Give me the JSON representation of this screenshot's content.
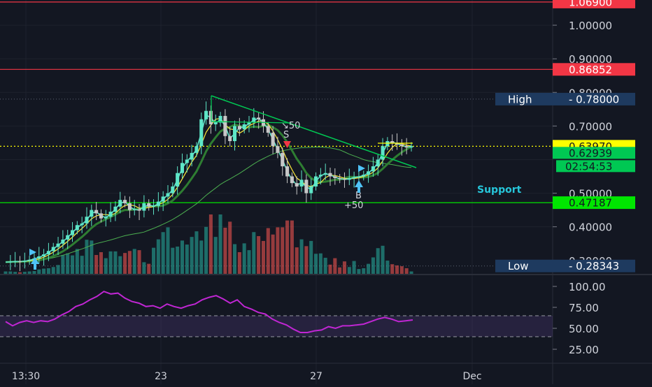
{
  "chart_data": {
    "type": "candlestick",
    "symbol_note": "",
    "price_axis": {
      "ticks": [
        "1.00000",
        "0.90000",
        "0.80000",
        "0.70000",
        "0.50000",
        "0.40000",
        "0.30000"
      ],
      "ylim": [
        0.26,
        1.075
      ]
    },
    "x_axis": {
      "ticks": [
        "13:30",
        "23",
        "27",
        "Dec"
      ]
    },
    "horizontal_levels": [
      {
        "label": "1.06900",
        "value": 1.069,
        "color": "#f23645"
      },
      {
        "label": "0.86852",
        "value": 0.86852,
        "color": "#f23645"
      },
      {
        "label": "0.47187",
        "value": 0.47187,
        "color": "#00e600"
      }
    ],
    "markers": {
      "high": {
        "title": "High",
        "value": "0.78000"
      },
      "low": {
        "title": "Low",
        "value": "0.28343"
      },
      "last_price": "0.63970",
      "ma_value": "0.62939",
      "countdown": "02:54:53",
      "support_label": "Support",
      "sell_label": "S",
      "sell_qty": "50",
      "buy_label": "B",
      "buy_qty": "+50"
    },
    "price_path": [
      0.295,
      0.296,
      0.297,
      0.296,
      0.299,
      0.302,
      0.306,
      0.312,
      0.318,
      0.328,
      0.34,
      0.35,
      0.362,
      0.375,
      0.39,
      0.405,
      0.41,
      0.43,
      0.45,
      0.44,
      0.425,
      0.43,
      0.445,
      0.46,
      0.48,
      0.47,
      0.45,
      0.452,
      0.448,
      0.47,
      0.46,
      0.462,
      0.475,
      0.49,
      0.5,
      0.52,
      0.56,
      0.59,
      0.6,
      0.62,
      0.64,
      0.72,
      0.745,
      0.705,
      0.71,
      0.73,
      0.67,
      0.655,
      0.7,
      0.69,
      0.705,
      0.71,
      0.725,
      0.72,
      0.7,
      0.68,
      0.64,
      0.62,
      0.58,
      0.55,
      0.53,
      0.52,
      0.54,
      0.5,
      0.52,
      0.55,
      0.555,
      0.56,
      0.55,
      0.545,
      0.542,
      0.54,
      0.545,
      0.548,
      0.55,
      0.555,
      0.565,
      0.58,
      0.6,
      0.64,
      0.655,
      0.65,
      0.645,
      0.64,
      0.636,
      0.64
    ],
    "volume": [
      0.6,
      0.6,
      0.5,
      0.4,
      0.5,
      0.6,
      0.7,
      1.1,
      1.3,
      1.4,
      1.7,
      2.2,
      4.7,
      5.1,
      4.6,
      6.2,
      4.5,
      8.5,
      8.3,
      4.7,
      5.4,
      3.9,
      5.6,
      5.6,
      4.4,
      5.2,
      5.7,
      6.2,
      5.9,
      2.9,
      2.5,
      6.5,
      8.6,
      10.4,
      11.6,
      6.5,
      6.8,
      8.3,
      7.3,
      9.2,
      10.6,
      8.3,
      11.7,
      14.8,
      9.2,
      14.8,
      11.5,
      13.0,
      7.4,
      5.4,
      7.6,
      5.9,
      10.4,
      9.4,
      8.2,
      11.4,
      9.8,
      11.6,
      11.6,
      13.3,
      13.3,
      6.6,
      8.6,
      6.9,
      8.2,
      5.0,
      5.1,
      4.0,
      2.3,
      3.9,
      1.6,
      3.1,
      1.7,
      3.2,
      1.2,
      1.4,
      2.5,
      4.1,
      6.4,
      7.0,
      3.3,
      2.4,
      2.1,
      1.9,
      1.4,
      0.6
    ],
    "oscillator": {
      "axis_ticks": [
        "100.00",
        "75.00",
        "50.00",
        "25.00"
      ],
      "ylim": [
        10,
        110
      ],
      "band": [
        40,
        65
      ],
      "values": [
        58,
        53,
        57,
        59,
        57,
        59,
        58,
        61,
        66,
        70,
        76,
        79,
        84,
        88,
        94,
        91,
        92,
        86,
        82,
        80,
        76,
        77,
        74,
        79,
        76,
        74,
        77,
        79,
        84,
        87,
        89,
        85,
        80,
        84,
        76,
        73,
        69,
        67,
        61,
        57,
        54,
        49,
        45,
        45,
        47,
        48,
        52,
        50,
        53,
        53,
        54,
        55,
        58,
        61,
        63,
        61,
        58,
        59,
        60
      ]
    }
  }
}
